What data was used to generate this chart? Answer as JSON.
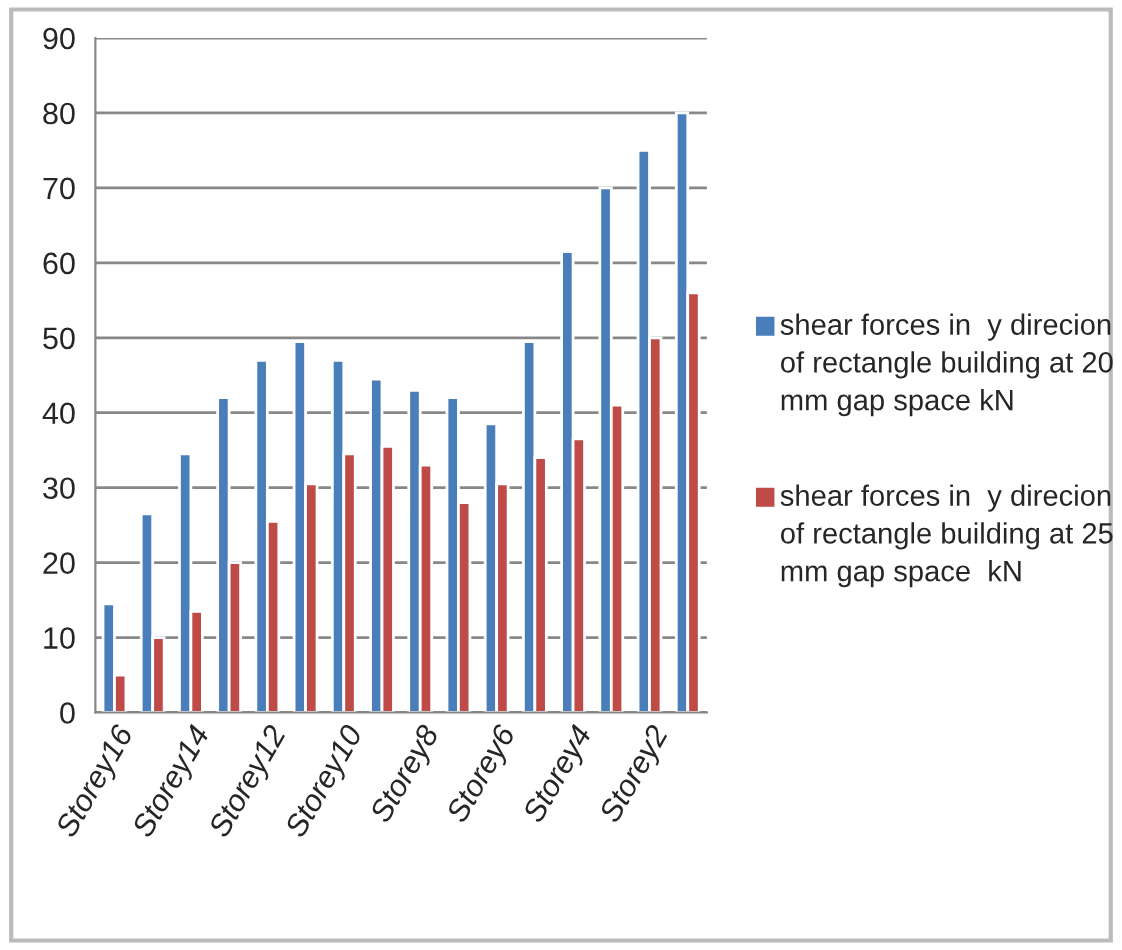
{
  "chart_data": {
    "type": "bar",
    "categories": [
      "Storey16",
      null,
      "Storey14",
      null,
      "Storey12",
      null,
      "Storey10",
      null,
      "Storey8",
      null,
      "Storey6",
      null,
      "Storey4",
      null,
      "Storey2",
      null
    ],
    "series": [
      {
        "name": "shear forces in  y direcion of rectangle building at 20 mm gap space kN",
        "color": "#4a7ebb",
        "values": [
          14.5,
          26.5,
          34.5,
          42,
          47,
          49.5,
          47,
          44.5,
          43,
          42,
          38.5,
          49.5,
          61.5,
          70,
          75,
          80
        ]
      },
      {
        "name": "shear forces in  y direcion of rectangle building at 25 mm gap space  kN",
        "color": "#be4b48",
        "values": [
          5,
          10,
          13.5,
          20,
          25.5,
          30.5,
          34.5,
          35.5,
          33,
          28,
          30.5,
          34,
          36.5,
          41,
          50,
          56
        ]
      }
    ],
    "ylim": [
      0,
      90
    ],
    "yticks": [
      0,
      10,
      20,
      30,
      40,
      50,
      60,
      70,
      80,
      90
    ],
    "grid": "y",
    "legend": "right"
  }
}
